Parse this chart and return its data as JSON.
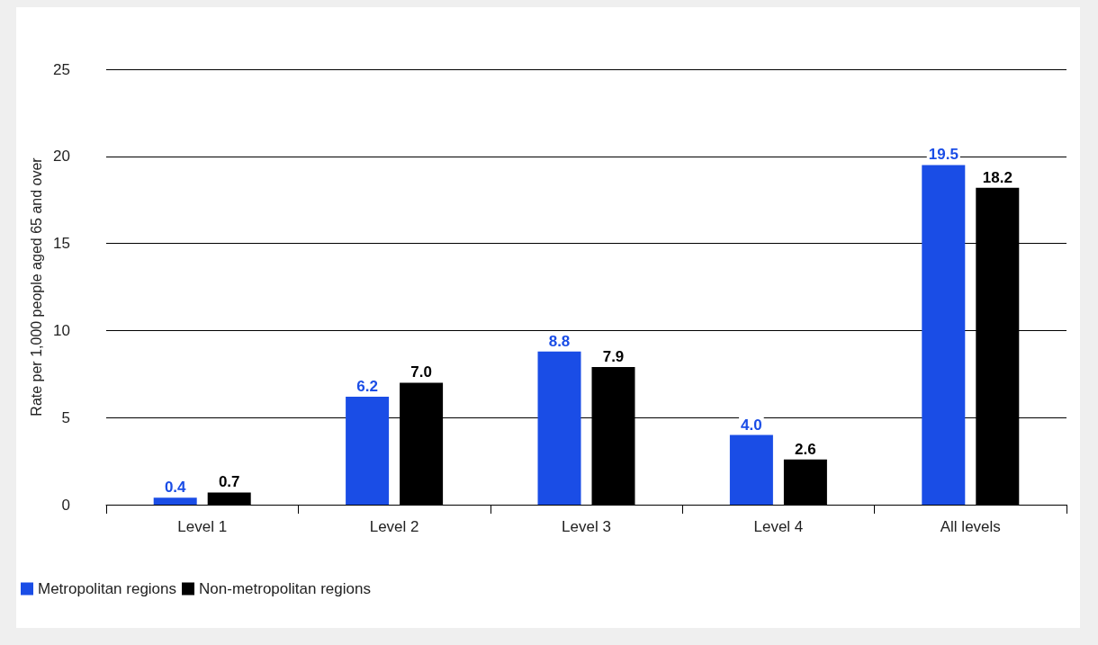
{
  "chart_data": {
    "type": "bar",
    "ylabel": "Rate per 1,000 people aged 65 and over",
    "categories": [
      "Level 1",
      "Level 2",
      "Level 3",
      "Level 4",
      "All levels"
    ],
    "series": [
      {
        "name": "Metropolitan regions",
        "color": "#1a4de6",
        "values": [
          0.4,
          6.2,
          8.8,
          4.0,
          19.5
        ],
        "value_labels": [
          "0.4",
          "6.2",
          "8.8",
          "4.0",
          "19.5"
        ]
      },
      {
        "name": "Non-metropolitan regions",
        "color": "#000000",
        "values": [
          0.7,
          7.0,
          7.9,
          2.6,
          18.2
        ],
        "value_labels": [
          "0.7",
          "7.0",
          "7.9",
          "2.6",
          "18.2"
        ]
      }
    ],
    "ylim": [
      0,
      25
    ],
    "yticks": [
      0,
      5,
      10,
      15,
      20,
      25
    ],
    "grid": "y",
    "legend": "bottom left"
  }
}
